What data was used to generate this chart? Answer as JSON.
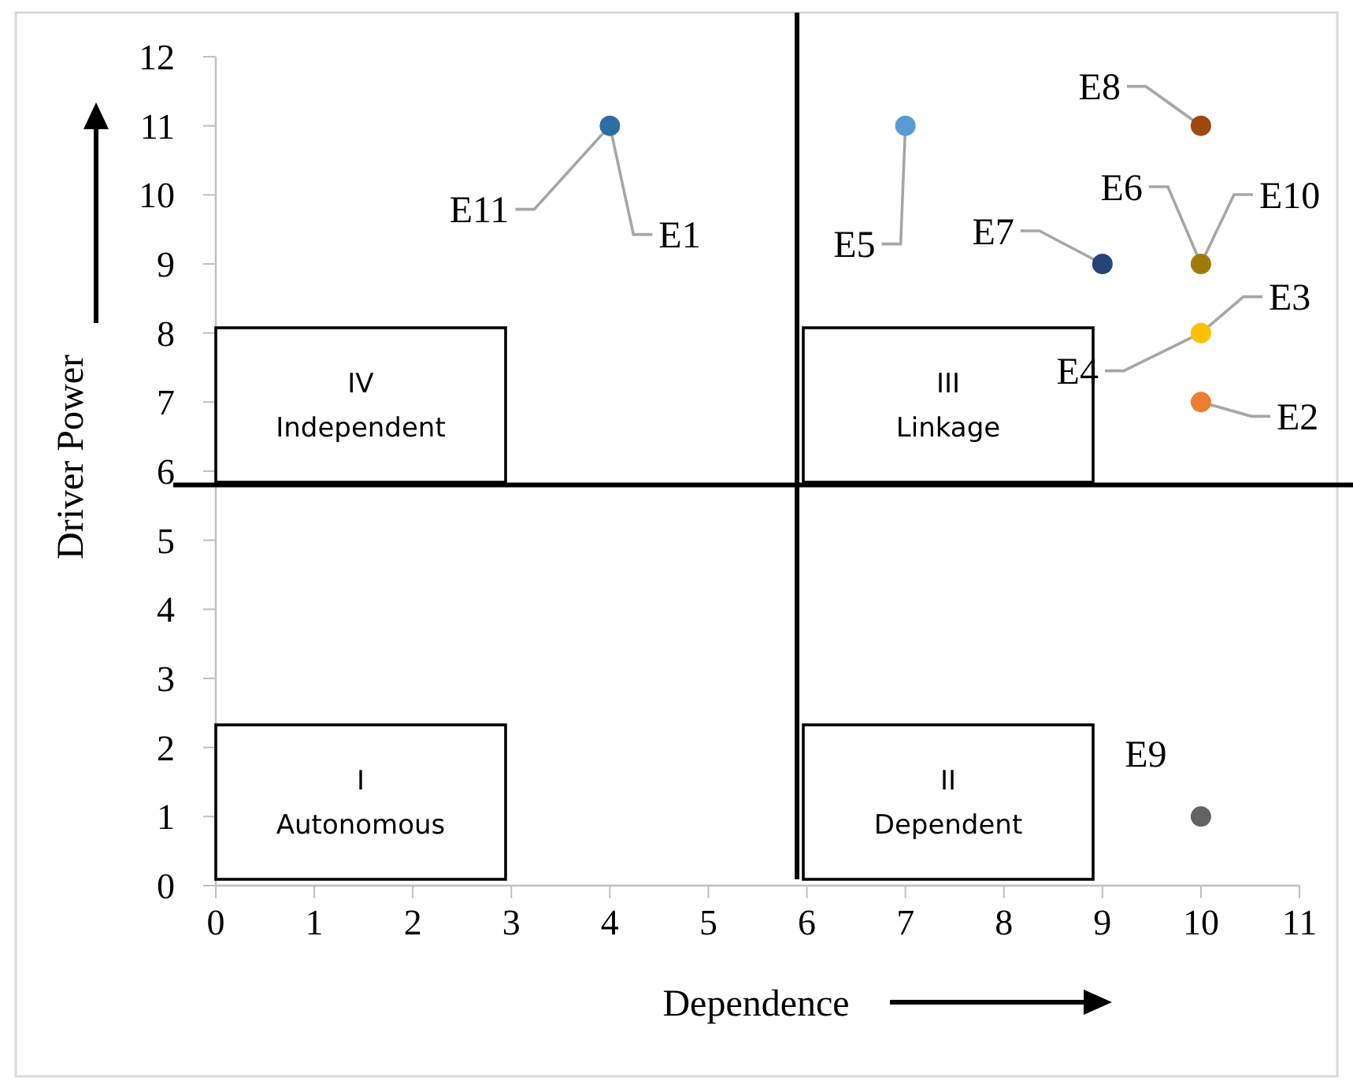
{
  "chart_data": {
    "type": "scatter",
    "xlabel": "Dependence",
    "ylabel": "Driver Power",
    "series": [
      {
        "x": [
          4,
          10,
          10,
          7,
          10,
          9,
          10,
          10
        ],
        "values": [
          11,
          7,
          8,
          11,
          9,
          9,
          11,
          1
        ],
        "colors": [
          "#2e6ca4",
          "#ed7d31",
          "#ffc000",
          "#5b9bd5",
          "#9e7c0c",
          "#264478",
          "#9e480e",
          "#636363"
        ]
      }
    ],
    "marker": "circle",
    "xlim": [
      0,
      11
    ],
    "xticks": [
      0,
      1,
      2,
      3,
      4,
      5,
      6,
      7,
      8,
      9,
      10,
      11
    ],
    "ylim": [
      0,
      12
    ],
    "yticks": [
      0,
      1,
      2,
      3,
      4,
      5,
      6,
      7,
      8,
      9,
      10,
      11,
      12
    ],
    "grid": false,
    "ref_lines": [
      {
        "axis": "x",
        "value": 5.9,
        "color": "#000000"
      },
      {
        "axis": "y",
        "value": 5.8,
        "color": "#000000"
      }
    ],
    "annotations": [
      {
        "text": "E1",
        "x": 4,
        "y": 11
      },
      {
        "text": "E2",
        "x": 10,
        "y": 7
      },
      {
        "text": "E3",
        "x": 10,
        "y": 8
      },
      {
        "text": "E4",
        "x": 10,
        "y": 8
      },
      {
        "text": "E5",
        "x": 7,
        "y": 11
      },
      {
        "text": "E6",
        "x": 10,
        "y": 9
      },
      {
        "text": "E7",
        "x": 9,
        "y": 9
      },
      {
        "text": "E8",
        "x": 10,
        "y": 11
      },
      {
        "text": "E9",
        "x": 10,
        "y": 1
      },
      {
        "text": "E10",
        "x": 10,
        "y": 9
      },
      {
        "text": "E11",
        "x": 4,
        "y": 11
      },
      "IV\nIndependent",
      "III\nLinkage",
      "I\nAutonomous",
      "II\nDependent"
    ]
  }
}
